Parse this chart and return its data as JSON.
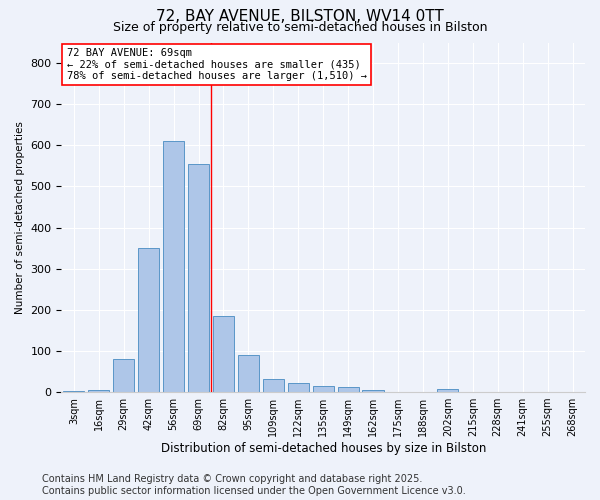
{
  "title1": "72, BAY AVENUE, BILSTON, WV14 0TT",
  "title2": "Size of property relative to semi-detached houses in Bilston",
  "xlabel": "Distribution of semi-detached houses by size in Bilston",
  "ylabel": "Number of semi-detached properties",
  "categories": [
    "3sqm",
    "16sqm",
    "29sqm",
    "42sqm",
    "56sqm",
    "69sqm",
    "82sqm",
    "95sqm",
    "109sqm",
    "122sqm",
    "135sqm",
    "149sqm",
    "162sqm",
    "175sqm",
    "188sqm",
    "202sqm",
    "215sqm",
    "228sqm",
    "241sqm",
    "255sqm",
    "268sqm"
  ],
  "values": [
    2,
    5,
    80,
    350,
    610,
    555,
    185,
    90,
    33,
    23,
    15,
    12,
    5,
    1,
    0,
    8,
    0,
    0,
    0,
    1,
    0
  ],
  "bar_color": "#aec6e8",
  "bar_edge_color": "#5a96c8",
  "ref_line_color": "red",
  "annotation_title": "72 BAY AVENUE: 69sqm",
  "annotation_line1": "← 22% of semi-detached houses are smaller (435)",
  "annotation_line2": "78% of semi-detached houses are larger (1,510) →",
  "annotation_box_color": "white",
  "annotation_box_edge": "red",
  "footnote1": "Contains HM Land Registry data © Crown copyright and database right 2025.",
  "footnote2": "Contains public sector information licensed under the Open Government Licence v3.0.",
  "ylim": [
    0,
    850
  ],
  "yticks": [
    0,
    100,
    200,
    300,
    400,
    500,
    600,
    700,
    800
  ],
  "bg_color": "#eef2fa",
  "plot_bg_color": "#eef2fa",
  "title1_fontsize": 11,
  "title2_fontsize": 9,
  "footnote_fontsize": 7
}
